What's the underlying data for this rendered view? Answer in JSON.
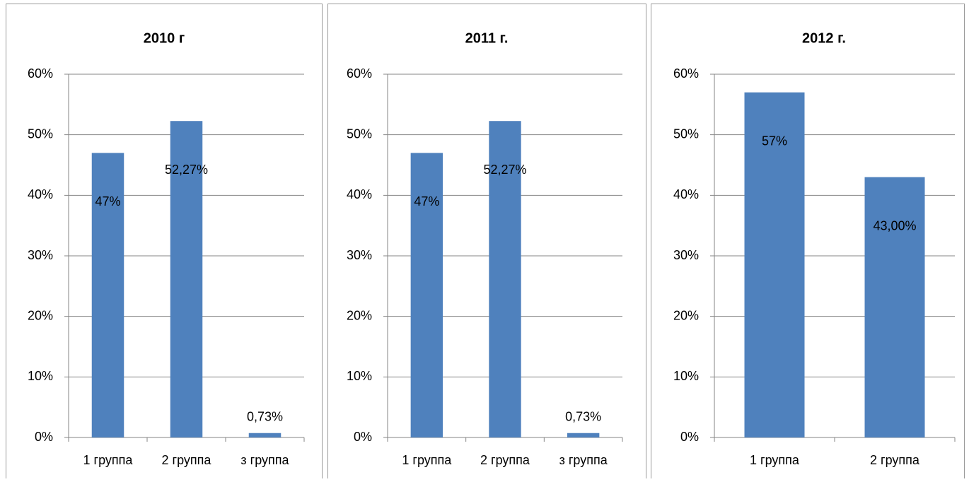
{
  "chart_data": [
    {
      "type": "bar",
      "title": "2010 г",
      "categories": [
        "1 группа",
        "2 группа",
        "з группа"
      ],
      "values": [
        47,
        52.27,
        0.73
      ],
      "value_labels": [
        "47%",
        "52,27%",
        "0,73%"
      ],
      "color": "#4f81bd",
      "ylim": [
        0,
        60
      ],
      "yticks": [
        {
          "value": 0,
          "label": "0%"
        },
        {
          "value": 10,
          "label": "10%"
        },
        {
          "value": 20,
          "label": "20%"
        },
        {
          "value": 30,
          "label": "30%"
        },
        {
          "value": 40,
          "label": "40%"
        },
        {
          "value": 50,
          "label": "50%"
        },
        {
          "value": 60,
          "label": "60%"
        }
      ],
      "grid": true
    },
    {
      "type": "bar",
      "title": "2011 г.",
      "categories": [
        "1 группа",
        "2 группа",
        "з группа"
      ],
      "values": [
        47,
        52.27,
        0.73
      ],
      "value_labels": [
        "47%",
        "52,27%",
        "0,73%"
      ],
      "color": "#4f81bd",
      "ylim": [
        0,
        60
      ],
      "yticks": [
        {
          "value": 0,
          "label": "0%"
        },
        {
          "value": 10,
          "label": "10%"
        },
        {
          "value": 20,
          "label": "20%"
        },
        {
          "value": 30,
          "label": "30%"
        },
        {
          "value": 40,
          "label": "40%"
        },
        {
          "value": 50,
          "label": "50%"
        },
        {
          "value": 60,
          "label": "60%"
        }
      ],
      "grid": true
    },
    {
      "type": "bar",
      "title": "2012 г.",
      "categories": [
        "1 группа",
        "2 группа"
      ],
      "values": [
        57,
        43
      ],
      "value_labels": [
        "57%",
        "43,00%"
      ],
      "color": "#4f81bd",
      "ylim": [
        0,
        60
      ],
      "yticks": [
        {
          "value": 0,
          "label": "0%"
        },
        {
          "value": 10,
          "label": "10%"
        },
        {
          "value": 20,
          "label": "20%"
        },
        {
          "value": 30,
          "label": "30%"
        },
        {
          "value": 40,
          "label": "40%"
        },
        {
          "value": 50,
          "label": "50%"
        },
        {
          "value": 60,
          "label": "60%"
        }
      ],
      "grid": true
    }
  ]
}
